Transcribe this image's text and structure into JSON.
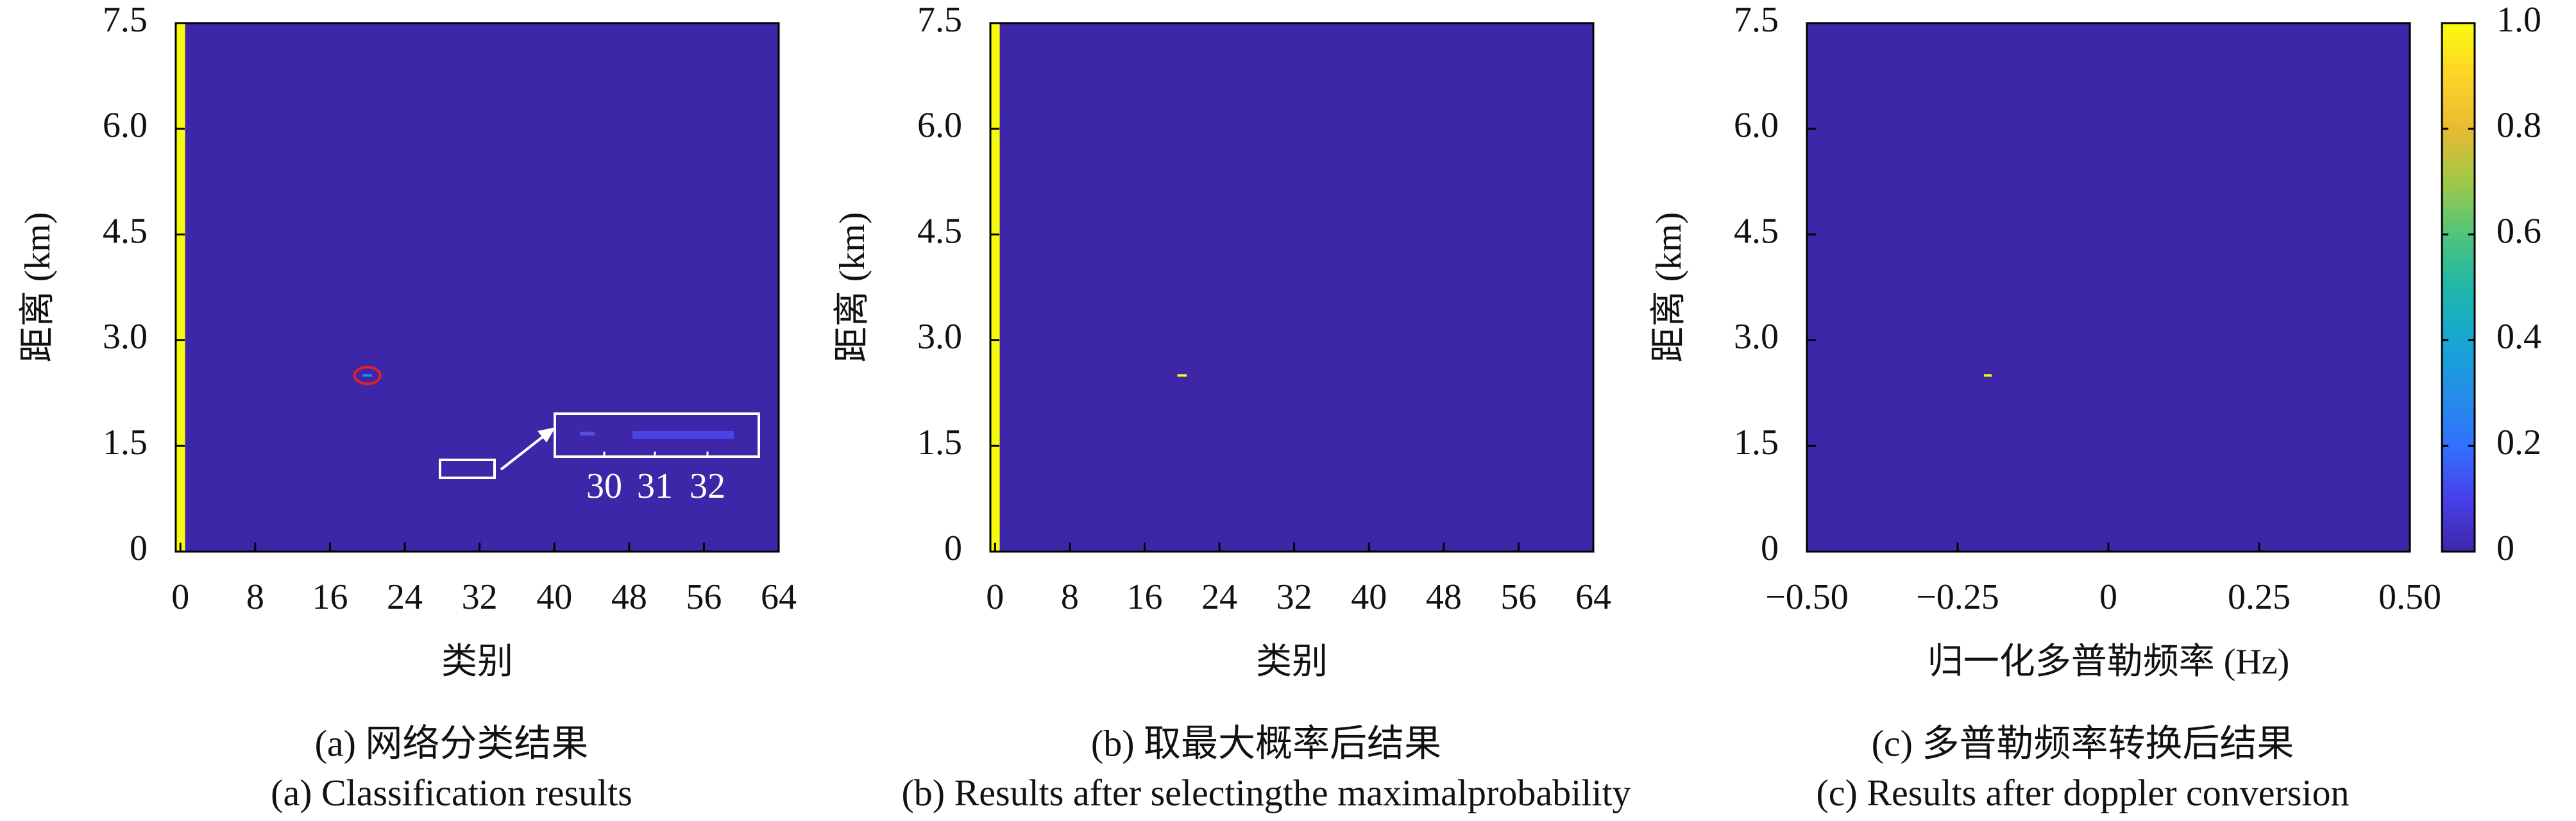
{
  "chart_data": [
    {
      "type": "heatmap",
      "colormap": "parula",
      "fill": 0,
      "xlabel": "类别",
      "ylabel": "距离 (km)",
      "xlim": [
        -0.5,
        64
      ],
      "ylim": [
        0,
        7.5
      ],
      "xticks": [
        0,
        8,
        16,
        24,
        32,
        40,
        48,
        56,
        64
      ],
      "yticks": [
        0,
        1.5,
        {
          "value": 3,
          "label": "3.0"
        },
        4.5,
        {
          "value": 6,
          "label": "6.0"
        },
        7.5
      ],
      "columns": [
        {
          "x": 0,
          "value": 1
        }
      ],
      "points": [
        {
          "x": 20,
          "y": 2.5,
          "value": 0.3
        }
      ],
      "inset_xticks": [
        30,
        31,
        32
      ],
      "caption": [
        "(a) 网络分类结果",
        "(a) Classification results"
      ]
    },
    {
      "type": "heatmap",
      "colormap": "parula",
      "fill": 0,
      "xlabel": "类别",
      "ylabel": "距离 (km)",
      "xlim": [
        -0.5,
        64
      ],
      "ylim": [
        0,
        7.5
      ],
      "xticks": [
        0,
        8,
        16,
        24,
        32,
        40,
        48,
        56,
        64
      ],
      "yticks": [
        0,
        1.5,
        {
          "value": 3,
          "label": "3.0"
        },
        4.5,
        {
          "value": 6,
          "label": "6.0"
        },
        7.5
      ],
      "columns": [
        {
          "x": 0,
          "value": 1
        }
      ],
      "points": [
        {
          "x": 20,
          "y": 2.5,
          "value": 1
        }
      ],
      "caption": [
        "(b) 取最大概率后结果",
        "(b) Results after selectingthe maximalprobability"
      ]
    },
    {
      "type": "heatmap",
      "colormap": "parula",
      "fill": 0,
      "xlabel": "归一化多普勒频率 (Hz)",
      "ylabel": "距离 (km)",
      "xlim": [
        -0.5,
        0.5
      ],
      "ylim": [
        0,
        7.5
      ],
      "xticks": [
        {
          "value": -0.5,
          "label": "−0.50"
        },
        {
          "value": -0.25,
          "label": "−0.25"
        },
        0,
        0.25,
        {
          "value": 0.5,
          "label": "0.50"
        }
      ],
      "yticks": [
        0,
        1.5,
        {
          "value": 3,
          "label": "3.0"
        },
        4.5,
        {
          "value": 6,
          "label": "6.0"
        },
        7.5
      ],
      "columns": [],
      "points": [
        {
          "x": -0.2,
          "y": 2.5,
          "value": 1
        }
      ],
      "zlim": [
        0,
        1
      ],
      "zticks": [
        0,
        0.2,
        0.4,
        0.6,
        0.8,
        {
          "value": 1,
          "label": "1.0"
        }
      ],
      "caption": [
        "(c) 多普勒频率转换后结果",
        "(c) Results after doppler conversion"
      ]
    }
  ]
}
